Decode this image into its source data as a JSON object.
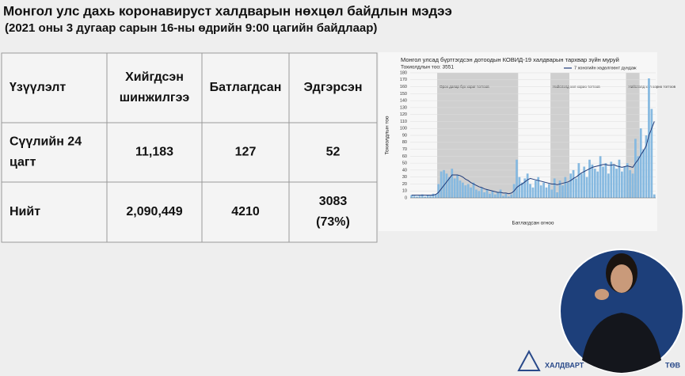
{
  "header": {
    "title": "Монгол улс дахь коронавируст халдварын нөхцөл байдлын мэдээ",
    "subtitle": "(2021 оны 3 дугаар сарын 16-ны өдрийн 9:00 цагийн байдлаар)"
  },
  "table": {
    "columns": [
      "Үзүүлэлт",
      [
        "Хийгдсэн",
        "шинжилгээ"
      ],
      "Батлагдсан",
      "Эдгэрсэн"
    ],
    "rows": [
      [
        [
          "Сүүлийн 24",
          "цагт"
        ],
        "11,183",
        "127",
        "52"
      ],
      [
        "Нийт",
        "2,090,449",
        "4210",
        [
          "3083",
          "(73%)"
        ]
      ]
    ]
  },
  "chart_data": {
    "type": "bar",
    "title": "Монгол улсад бүртгэгдсэн дотоодын КОВИД-19 халдварын тархвар зүйн муруй",
    "subtitle": "Тохиолдлын тоо: 3551",
    "ylabel": "Тохиолдлын тоо",
    "xlabel": "Батлагдсан огноо",
    "ylim": [
      0,
      180
    ],
    "yticks": [
      0,
      10,
      20,
      30,
      40,
      50,
      60,
      70,
      80,
      90,
      100,
      110,
      120,
      130,
      140,
      150,
      160,
      170,
      180
    ],
    "grid": true,
    "series": [
      {
        "name": "Тохиолдлын тоо",
        "color": "#86b9e0",
        "values": [
          4,
          3,
          2,
          3,
          5,
          2,
          4,
          3,
          6,
          5,
          20,
          38,
          40,
          35,
          30,
          42,
          28,
          33,
          25,
          22,
          18,
          20,
          15,
          22,
          12,
          10,
          15,
          8,
          12,
          6,
          10,
          5,
          8,
          12,
          3,
          6,
          2,
          5,
          20,
          55,
          30,
          22,
          28,
          35,
          20,
          15,
          25,
          30,
          18,
          22,
          15,
          20,
          12,
          28,
          8,
          25,
          18,
          30,
          22,
          35,
          40,
          28,
          50,
          35,
          45,
          30,
          55,
          48,
          42,
          38,
          60,
          45,
          50,
          35,
          52,
          48,
          42,
          55,
          38,
          45,
          50,
          40,
          35,
          85,
          60,
          100,
          70,
          90,
          172,
          128,
          5
        ]
      },
      {
        "name": "7 хоногийн хөдөлгөөнт дундаж",
        "color": "#1f3a78",
        "type": "line",
        "values": [
          4,
          4,
          4,
          4,
          4,
          4,
          4,
          4,
          4,
          5,
          8,
          13,
          18,
          23,
          28,
          33,
          33,
          33,
          32,
          30,
          27,
          25,
          22,
          20,
          18,
          16,
          15,
          13,
          12,
          11,
          10,
          9,
          8,
          8,
          7,
          7,
          6,
          7,
          10,
          15,
          18,
          20,
          23,
          26,
          28,
          27,
          26,
          25,
          24,
          23,
          22,
          21,
          20,
          20,
          19,
          20,
          21,
          22,
          23,
          25,
          28,
          30,
          33,
          36,
          38,
          40,
          42,
          44,
          45,
          46,
          47,
          48,
          48,
          47,
          47,
          48,
          46,
          45,
          44,
          45,
          46,
          45,
          44,
          50,
          55,
          62,
          68,
          75,
          90,
          100,
          110
        ]
      }
    ],
    "regions": [
      {
        "label": "Орон даяар бүх хориг тогтоов",
        "start": 10,
        "end": 40
      },
      {
        "label": "Нийслэлд хөл хорио тогтоов",
        "start": 52,
        "end": 59
      },
      {
        "label": "Нийслэлд хөл хорио тогтоов",
        "start": 80,
        "end": 85
      }
    ]
  },
  "logo": {
    "left": "ХАЛДВАРТ",
    "right": "ТӨВ"
  }
}
